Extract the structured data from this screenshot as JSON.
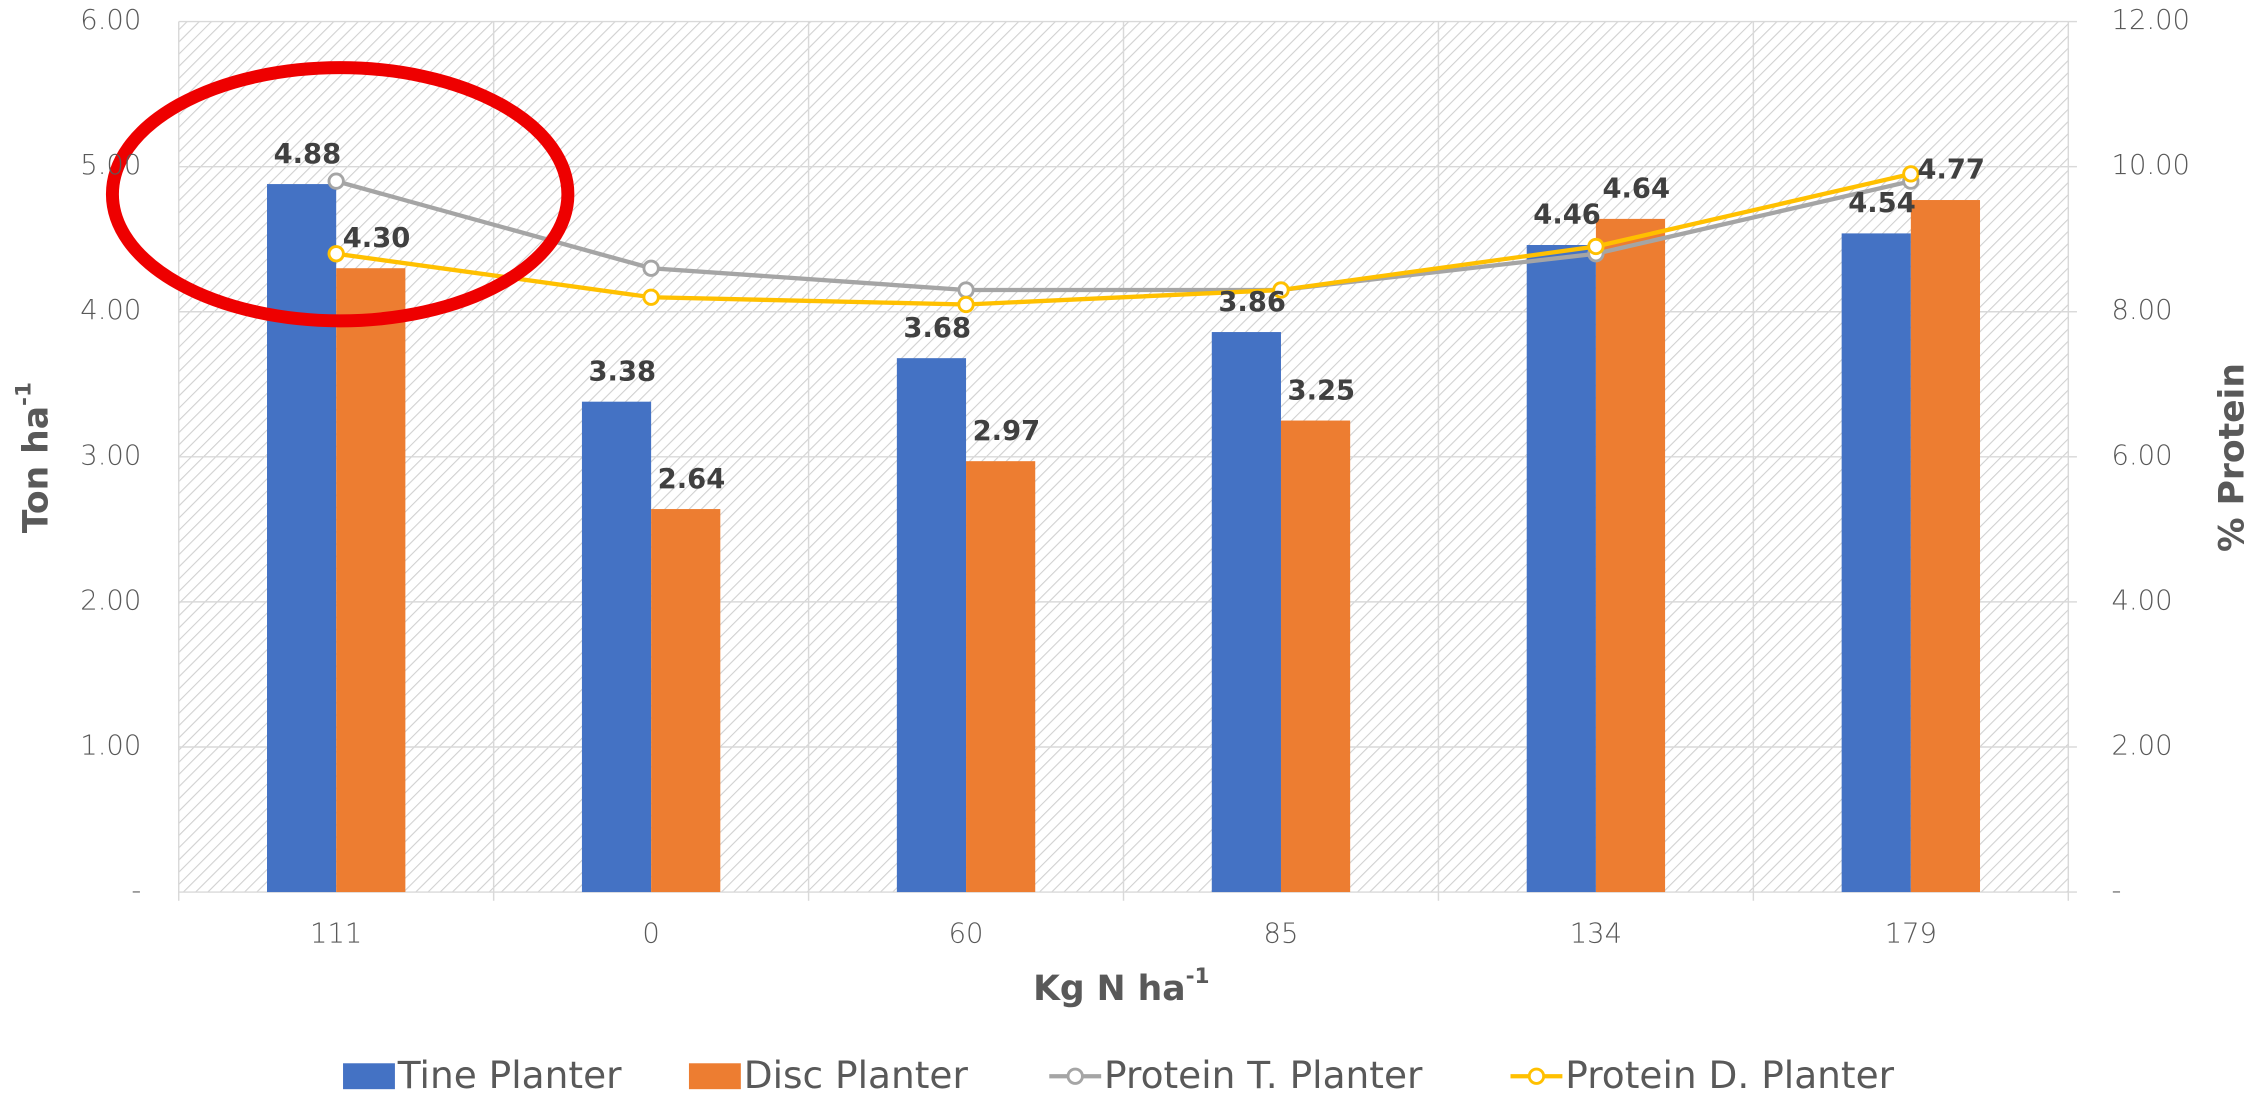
{
  "chart_data": {
    "type": "bar",
    "categories": [
      "111",
      "0",
      "60",
      "85",
      "134",
      "179"
    ],
    "series": [
      {
        "name": "Tine Planter",
        "type": "bar",
        "color": "#4472c4",
        "values": [
          4.88,
          3.38,
          3.68,
          3.86,
          4.46,
          4.54
        ],
        "value_labels": [
          "4.88",
          "3.38",
          "3.68",
          "3.86",
          "4.46",
          "4.54"
        ]
      },
      {
        "name": "Disc Planter",
        "type": "bar",
        "color": "#ed7d31",
        "values": [
          4.3,
          2.64,
          2.97,
          3.25,
          4.64,
          4.77
        ],
        "value_labels": [
          "4.30",
          "2.64",
          "2.97",
          "3.25",
          "4.64",
          "4.77"
        ]
      },
      {
        "name": "Protein T. Planter",
        "type": "line",
        "axis": "y2",
        "color": "#a5a5a5",
        "values": [
          9.8,
          8.6,
          8.3,
          8.3,
          8.8,
          9.8
        ]
      },
      {
        "name": "Protein D. Planter",
        "type": "line",
        "axis": "y2",
        "color": "#ffc000",
        "values": [
          8.8,
          8.2,
          8.1,
          8.3,
          8.9,
          9.9
        ]
      }
    ],
    "x_label": "Kg N ha",
    "x_label_sup": "-1",
    "y_label": "Ton ha",
    "y_label_sup": "-1",
    "y2_label": "% Protein",
    "ylim": [
      0,
      6
    ],
    "yticks": [
      {
        "value": 0,
        "label": "-"
      },
      {
        "value": 1,
        "label": "1.00"
      },
      {
        "value": 2,
        "label": "2.00"
      },
      {
        "value": 3,
        "label": "3.00"
      },
      {
        "value": 4,
        "label": "4.00"
      },
      {
        "value": 5,
        "label": "5.00"
      },
      {
        "value": 6,
        "label": "6.00"
      }
    ],
    "y2lim": [
      0,
      12
    ],
    "y2ticks": [
      {
        "value": 0,
        "label": "-"
      },
      {
        "value": 2,
        "label": "2.00"
      },
      {
        "value": 4,
        "label": "4.00"
      },
      {
        "value": 6,
        "label": "6.00"
      },
      {
        "value": 8,
        "label": "8.00"
      },
      {
        "value": 10,
        "label": "10.00"
      },
      {
        "value": 12,
        "label": "12.00"
      }
    ],
    "grid": true,
    "legend": "bottom"
  }
}
